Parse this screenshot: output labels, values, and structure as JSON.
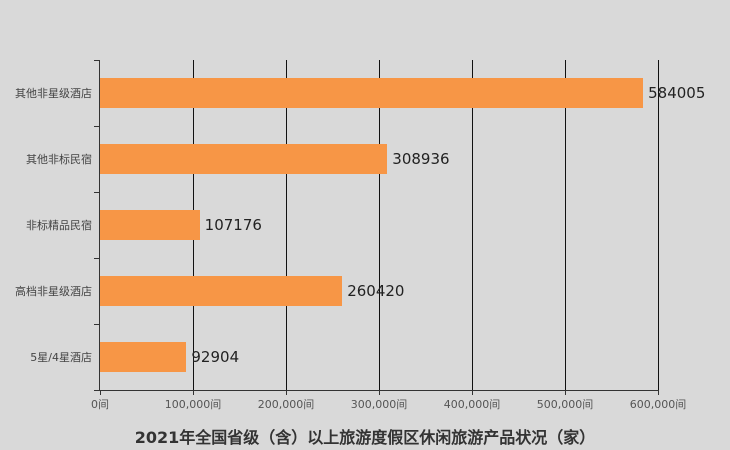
{
  "chart_data": {
    "type": "bar",
    "orientation": "horizontal",
    "title": "2021年全国省级（含）以上旅游度假区休闲旅游产品状况（家）",
    "categories": [
      "其他非星级酒店",
      "其他非标民宿",
      "非标精品民宿",
      "高档非星级酒店",
      "5星/4星酒店"
    ],
    "values": [
      584005,
      308936,
      107176,
      260420,
      92904
    ],
    "xlabel": "",
    "ylabel": "",
    "xlim": [
      0,
      600000
    ],
    "x_ticks": [
      "0间",
      "100,000间",
      "200,000间",
      "300,000间",
      "400,000间",
      "500,000间",
      "600,000间"
    ],
    "grid": true,
    "bar_color": "#f79646",
    "data_labels": true,
    "legend": null
  }
}
